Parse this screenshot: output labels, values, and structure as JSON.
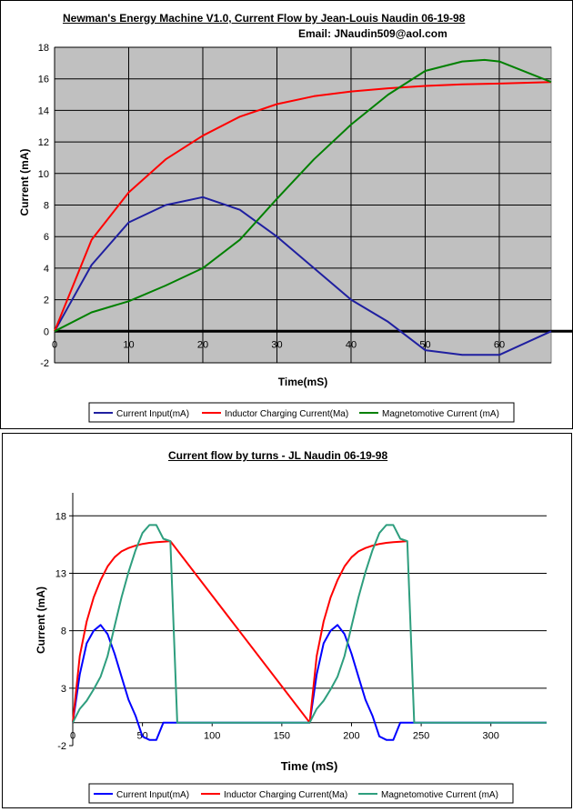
{
  "chart_data": [
    {
      "type": "line",
      "title": "Newman's Energy Machine V1.0, Current Flow by Jean-Louis Naudin  06-19-98",
      "subtitle": "Email: JNaudin509@aol.com",
      "xlabel": "Time(mS)",
      "ylabel": "Current (mA)",
      "xlim": [
        0,
        67
      ],
      "ylim": [
        -2,
        18
      ],
      "xticks": [
        "0",
        "10",
        "20",
        "30",
        "40",
        "50",
        "60"
      ],
      "yticks": [
        "-2",
        "0",
        "2",
        "4",
        "6",
        "8",
        "10",
        "12",
        "14",
        "16",
        "18"
      ],
      "grid": true,
      "legend_position": "bottom",
      "series": [
        {
          "name": "Current Input(mA)",
          "color": "#1f1fa0",
          "x": [
            0,
            5,
            10,
            15,
            20,
            25,
            30,
            35,
            40,
            45,
            50,
            55,
            60,
            67
          ],
          "y": [
            0,
            4.2,
            6.9,
            8.0,
            8.5,
            7.7,
            6.0,
            4.0,
            2.0,
            0.6,
            -1.2,
            -1.5,
            -1.5,
            0
          ]
        },
        {
          "name": "Inductor Charging Current(Ma)",
          "color": "#ff0000",
          "x": [
            0,
            5,
            10,
            15,
            20,
            25,
            30,
            35,
            40,
            45,
            50,
            55,
            60,
            67
          ],
          "y": [
            0,
            5.8,
            8.8,
            10.9,
            12.4,
            13.6,
            14.4,
            14.9,
            15.2,
            15.4,
            15.55,
            15.65,
            15.7,
            15.8
          ]
        },
        {
          "name": "Magnetomotive Current (mA)",
          "color": "#008000",
          "x": [
            0,
            5,
            10,
            15,
            20,
            25,
            30,
            35,
            40,
            45,
            50,
            55,
            58,
            60,
            67
          ],
          "y": [
            0,
            1.2,
            1.9,
            2.9,
            4.0,
            5.8,
            8.4,
            10.9,
            13.1,
            15.0,
            16.5,
            17.1,
            17.2,
            17.1,
            15.8
          ]
        }
      ]
    },
    {
      "type": "line",
      "title": "Current flow by turns - JL Naudin 06-19-98",
      "xlabel": "Time (mS)",
      "ylabel": "Current (mA)",
      "xlim": [
        0,
        340
      ],
      "ylim": [
        -2,
        20
      ],
      "xticks": [
        "0",
        "50",
        "100",
        "150",
        "200",
        "250",
        "300"
      ],
      "yticks": [
        "-2",
        "3",
        "8",
        "13",
        "18"
      ],
      "grid": true,
      "legend_position": "bottom",
      "series": [
        {
          "name": "Current Input(mA)",
          "color": "#0000ff",
          "x": [
            0,
            5,
            10,
            15,
            20,
            25,
            30,
            35,
            40,
            45,
            50,
            55,
            60,
            65,
            70,
            75,
            170,
            175,
            180,
            185,
            190,
            195,
            200,
            205,
            210,
            215,
            220,
            225,
            230,
            235,
            240,
            245,
            340
          ],
          "y": [
            0,
            4.2,
            6.9,
            8.0,
            8.5,
            7.7,
            6.0,
            4.0,
            2.0,
            0.6,
            -1.2,
            -1.5,
            -1.5,
            0,
            0,
            0,
            0,
            4.2,
            6.9,
            8.0,
            8.5,
            7.7,
            6.0,
            4.0,
            2.0,
            0.6,
            -1.2,
            -1.5,
            -1.5,
            0,
            0,
            0,
            0
          ]
        },
        {
          "name": "Inductor Charging Current(Ma)",
          "color": "#ff0000",
          "x": [
            0,
            5,
            10,
            15,
            20,
            25,
            30,
            35,
            40,
            45,
            50,
            55,
            60,
            65,
            70,
            170,
            175,
            180,
            185,
            190,
            195,
            200,
            205,
            210,
            215,
            220,
            225,
            230,
            235,
            240
          ],
          "y": [
            0,
            5.8,
            8.8,
            10.9,
            12.4,
            13.6,
            14.4,
            14.9,
            15.2,
            15.4,
            15.55,
            15.65,
            15.7,
            15.75,
            15.8,
            0,
            5.8,
            8.8,
            10.9,
            12.4,
            13.6,
            14.4,
            14.9,
            15.2,
            15.4,
            15.55,
            15.65,
            15.7,
            15.75,
            15.8
          ]
        },
        {
          "name": "Magnetomotive Current (mA)",
          "color": "#2e9e7e",
          "x": [
            0,
            5,
            10,
            15,
            20,
            25,
            30,
            35,
            40,
            45,
            50,
            55,
            60,
            65,
            70,
            75,
            170,
            175,
            180,
            185,
            190,
            195,
            200,
            205,
            210,
            215,
            220,
            225,
            230,
            235,
            240,
            245,
            340
          ],
          "y": [
            0,
            1.2,
            1.9,
            2.9,
            4.0,
            5.8,
            8.4,
            10.9,
            13.1,
            15.0,
            16.5,
            17.2,
            17.2,
            16.0,
            15.8,
            0,
            0,
            1.2,
            1.9,
            2.9,
            4.0,
            5.8,
            8.4,
            10.9,
            13.1,
            15.0,
            16.5,
            17.2,
            17.2,
            16.0,
            15.8,
            0,
            0
          ]
        }
      ]
    }
  ]
}
